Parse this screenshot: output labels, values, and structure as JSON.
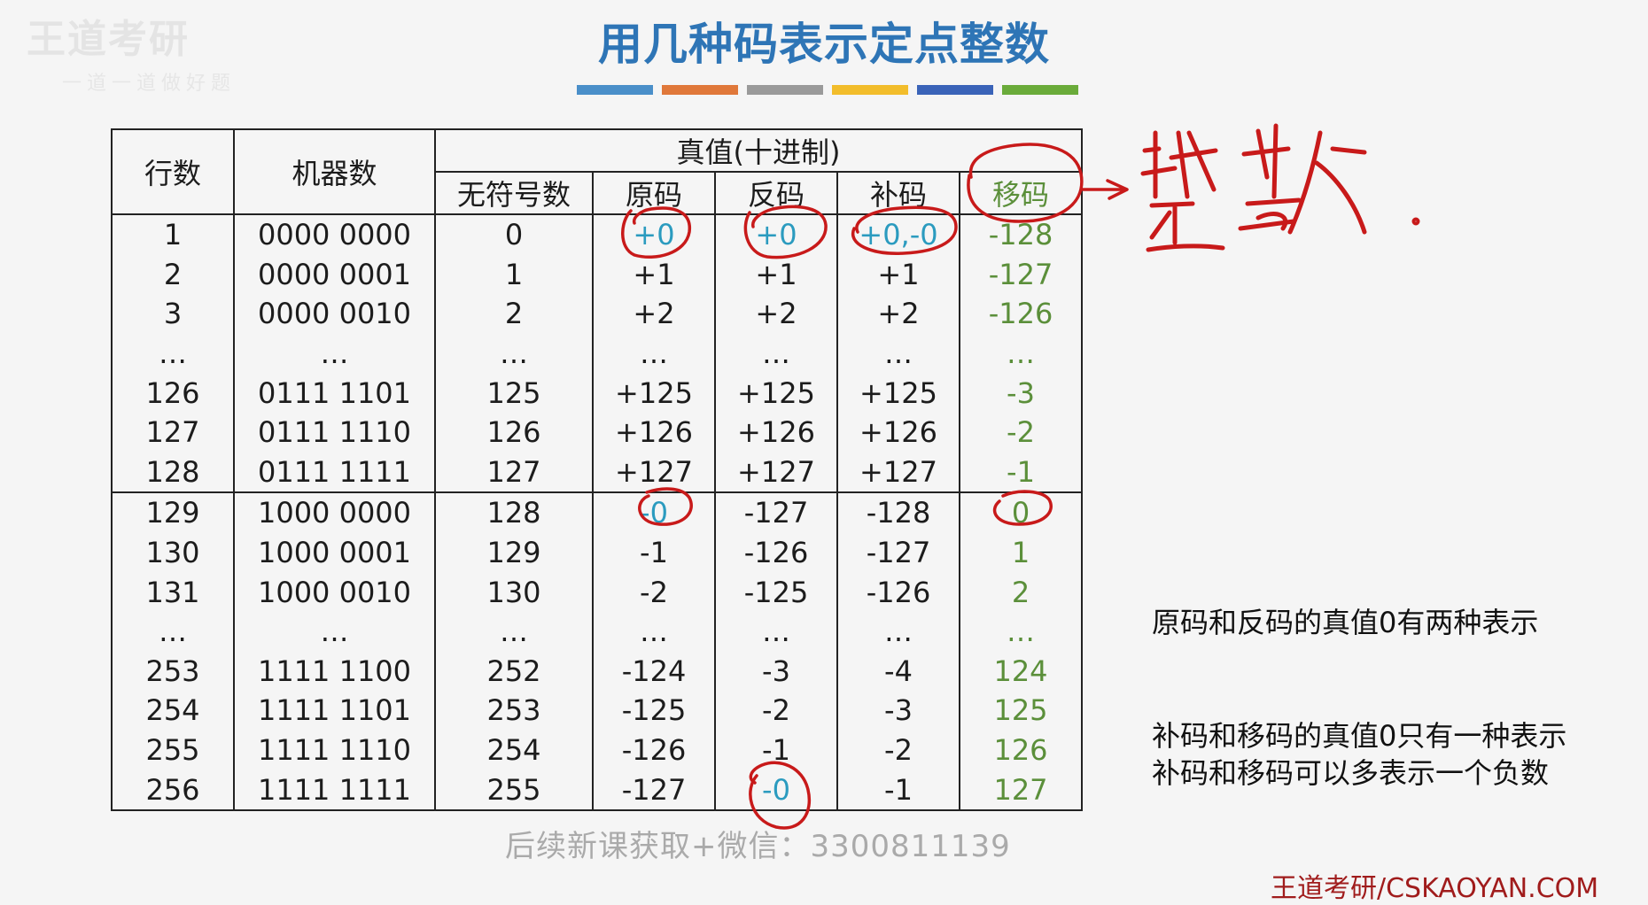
{
  "watermark": {
    "logo_text": "王道考研",
    "tagline": "一道一道做好题"
  },
  "title": "用几种码表示定点整数",
  "color_bars": [
    "#4a8fc9",
    "#e0783a",
    "#9a9a9a",
    "#f2bd2b",
    "#3a63b8",
    "#6aab3a"
  ],
  "table": {
    "headers": {
      "row_no": "行数",
      "machine": "机器数",
      "true_value": "真值(十进制)",
      "unsigned": "无符号数",
      "sign_magnitude": "原码",
      "ones_complement": "反码",
      "twos_complement": "补码",
      "biased": "移码"
    },
    "rows": [
      [
        "1",
        "0000 0000",
        "0",
        "+0",
        "+0",
        "+0,-0",
        "-128"
      ],
      [
        "2",
        "0000 0001",
        "1",
        "+1",
        "+1",
        "+1",
        "-127"
      ],
      [
        "3",
        "0000 0010",
        "2",
        "+2",
        "+2",
        "+2",
        "-126"
      ],
      [
        "…",
        "…",
        "…",
        "…",
        "…",
        "…",
        "…"
      ],
      [
        "126",
        "0111 1101",
        "125",
        "+125",
        "+125",
        "+125",
        "-3"
      ],
      [
        "127",
        "0111 1110",
        "126",
        "+126",
        "+126",
        "+126",
        "-2"
      ],
      [
        "128",
        "0111 1111",
        "127",
        "+127",
        "+127",
        "+127",
        "-1"
      ],
      [
        "129",
        "1000 0000",
        "128",
        "-0",
        "-127",
        "-128",
        "0"
      ],
      [
        "130",
        "1000 0001",
        "129",
        "-1",
        "-126",
        "-127",
        "1"
      ],
      [
        "131",
        "1000 0010",
        "130",
        "-2",
        "-125",
        "-126",
        "2"
      ],
      [
        "…",
        "…",
        "…",
        "…",
        "…",
        "…",
        "…"
      ],
      [
        "253",
        "1111 1100",
        "252",
        "-124",
        "-3",
        "-4",
        "124"
      ],
      [
        "254",
        "1111 1101",
        "253",
        "-125",
        "-2",
        "-3",
        "125"
      ],
      [
        "255",
        "1111 1110",
        "254",
        "-126",
        "-1",
        "-2",
        "126"
      ],
      [
        "256",
        "1111 1111",
        "255",
        "-127",
        "-0",
        "-1",
        "127"
      ]
    ]
  },
  "annotation_handwritten": "整数",
  "notes": {
    "line1": "原码和反码的真值0有两种表示",
    "line2": "补码和移码的真值0只有一种表示",
    "line3": "补码和移码可以多表示一个负数"
  },
  "footer": {
    "promo": "后续新课获取+微信：3300811139",
    "brand": "王道考研/CSKAOYAN.COM"
  },
  "colors": {
    "title": "#2e75b6",
    "ink": "#c81a1a",
    "highlight": "#2b9bbf",
    "biased": "#5b8f3a"
  }
}
